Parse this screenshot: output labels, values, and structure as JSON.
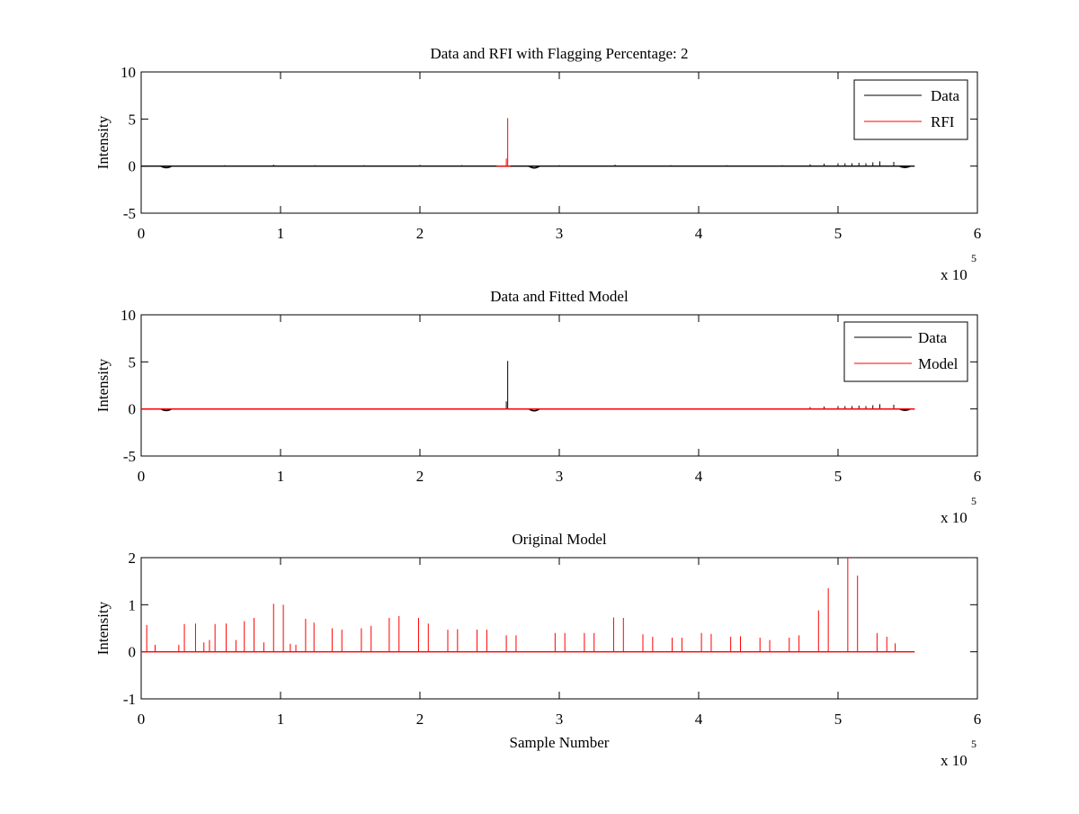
{
  "chart_data": [
    {
      "type": "line",
      "title": "Data and RFI with Flagging Percentage: 2",
      "xlabel": "",
      "ylabel": "Intensity",
      "xlim": [
        0,
        600000
      ],
      "ylim": [
        -5,
        10
      ],
      "xticks": [
        0,
        1,
        2,
        3,
        4,
        5,
        6
      ],
      "yticks": [
        -5,
        0,
        5,
        10
      ],
      "x_exponent_label": "x 10",
      "x_exponent": "5",
      "legend_position": "top-right",
      "series": [
        {
          "name": "Data",
          "color": "#000000",
          "baseline": 0,
          "x_range": [
            0,
            555000
          ],
          "dips": [
            [
              18000,
              -0.25
            ],
            [
              282000,
              -0.3
            ],
            [
              548000,
              -0.2
            ]
          ],
          "spikes": [
            [
              60000,
              0.1
            ],
            [
              95000,
              0.15
            ],
            [
              125000,
              0.1
            ],
            [
              160000,
              0.1
            ],
            [
              200000,
              0.12
            ],
            [
              230000,
              0.1
            ],
            [
              300000,
              0.1
            ],
            [
              340000,
              0.15
            ],
            [
              380000,
              0.1
            ],
            [
              420000,
              0.1
            ],
            [
              460000,
              0.1
            ],
            [
              480000,
              0.2
            ],
            [
              490000,
              0.25
            ],
            [
              500000,
              0.3
            ],
            [
              505000,
              0.3
            ],
            [
              510000,
              0.3
            ],
            [
              515000,
              0.35
            ],
            [
              520000,
              0.3
            ],
            [
              525000,
              0.4
            ],
            [
              530000,
              0.5
            ],
            [
              540000,
              0.45
            ]
          ]
        },
        {
          "name": "RFI",
          "color": "#ff0000",
          "baseline": 0,
          "x_range": [
            255000,
            265000
          ],
          "spikes": [
            [
              263000,
              5.1
            ],
            [
              262000,
              0.8
            ]
          ]
        }
      ]
    },
    {
      "type": "line",
      "title": "Data and Fitted Model",
      "xlabel": "",
      "ylabel": "Intensity",
      "xlim": [
        0,
        600000
      ],
      "ylim": [
        -5,
        10
      ],
      "xticks": [
        0,
        1,
        2,
        3,
        4,
        5,
        6
      ],
      "yticks": [
        -5,
        0,
        5,
        10
      ],
      "x_exponent_label": "x 10",
      "x_exponent": "5",
      "legend_position": "top-right",
      "series": [
        {
          "name": "Data",
          "color": "#000000",
          "baseline": 0,
          "x_range": [
            0,
            555000
          ],
          "dips": [
            [
              18000,
              -0.25
            ],
            [
              282000,
              -0.3
            ],
            [
              548000,
              -0.2
            ]
          ],
          "spikes": [
            [
              263000,
              5.1
            ],
            [
              262000,
              0.8
            ],
            [
              480000,
              0.2
            ],
            [
              490000,
              0.25
            ],
            [
              500000,
              0.3
            ],
            [
              505000,
              0.3
            ],
            [
              510000,
              0.3
            ],
            [
              515000,
              0.35
            ],
            [
              520000,
              0.3
            ],
            [
              525000,
              0.4
            ],
            [
              530000,
              0.5
            ],
            [
              540000,
              0.45
            ]
          ]
        },
        {
          "name": "Model",
          "color": "#ff0000",
          "baseline": 0,
          "x_range": [
            0,
            555000
          ],
          "spikes": []
        }
      ]
    },
    {
      "type": "line",
      "title": "Original Model",
      "xlabel": "Sample Number",
      "ylabel": "Intensity",
      "xlim": [
        0,
        600000
      ],
      "ylim": [
        -1,
        2
      ],
      "xticks": [
        0,
        1,
        2,
        3,
        4,
        5,
        6
      ],
      "yticks": [
        -1,
        0,
        1,
        2
      ],
      "x_exponent_label": "x 10",
      "x_exponent": "5",
      "legend_position": "none",
      "series": [
        {
          "color": "#ff0000",
          "baseline": 0,
          "x_range": [
            0,
            555000
          ],
          "spikes": [
            [
              4000,
              0.57
            ],
            [
              10000,
              0.15
            ],
            [
              27000,
              0.15
            ],
            [
              31000,
              0.59
            ],
            [
              39000,
              0.6
            ],
            [
              45000,
              0.2
            ],
            [
              49000,
              0.25
            ],
            [
              53000,
              0.59
            ],
            [
              61000,
              0.6
            ],
            [
              68000,
              0.25
            ],
            [
              74000,
              0.65
            ],
            [
              81000,
              0.72
            ],
            [
              88000,
              0.2
            ],
            [
              95000,
              1.02
            ],
            [
              102000,
              1.0
            ],
            [
              107000,
              0.17
            ],
            [
              111000,
              0.15
            ],
            [
              118000,
              0.7
            ],
            [
              124000,
              0.62
            ],
            [
              137000,
              0.5
            ],
            [
              144000,
              0.47
            ],
            [
              158000,
              0.5
            ],
            [
              165000,
              0.55
            ],
            [
              178000,
              0.72
            ],
            [
              185000,
              0.76
            ],
            [
              199000,
              0.72
            ],
            [
              206000,
              0.6
            ],
            [
              220000,
              0.47
            ],
            [
              227000,
              0.48
            ],
            [
              241000,
              0.47
            ],
            [
              248000,
              0.47
            ],
            [
              262000,
              0.35
            ],
            [
              269000,
              0.35
            ],
            [
              297000,
              0.4
            ],
            [
              304000,
              0.4
            ],
            [
              318000,
              0.4
            ],
            [
              325000,
              0.4
            ],
            [
              339000,
              0.73
            ],
            [
              346000,
              0.72
            ],
            [
              360000,
              0.37
            ],
            [
              367000,
              0.32
            ],
            [
              381000,
              0.3
            ],
            [
              388000,
              0.3
            ],
            [
              402000,
              0.4
            ],
            [
              409000,
              0.38
            ],
            [
              423000,
              0.32
            ],
            [
              430000,
              0.33
            ],
            [
              444000,
              0.3
            ],
            [
              451000,
              0.25
            ],
            [
              465000,
              0.3
            ],
            [
              472000,
              0.35
            ],
            [
              486000,
              0.88
            ],
            [
              493000,
              1.35
            ],
            [
              507000,
              2.0
            ],
            [
              514000,
              1.62
            ],
            [
              528000,
              0.4
            ],
            [
              535000,
              0.32
            ],
            [
              541000,
              0.18
            ]
          ]
        }
      ]
    }
  ]
}
